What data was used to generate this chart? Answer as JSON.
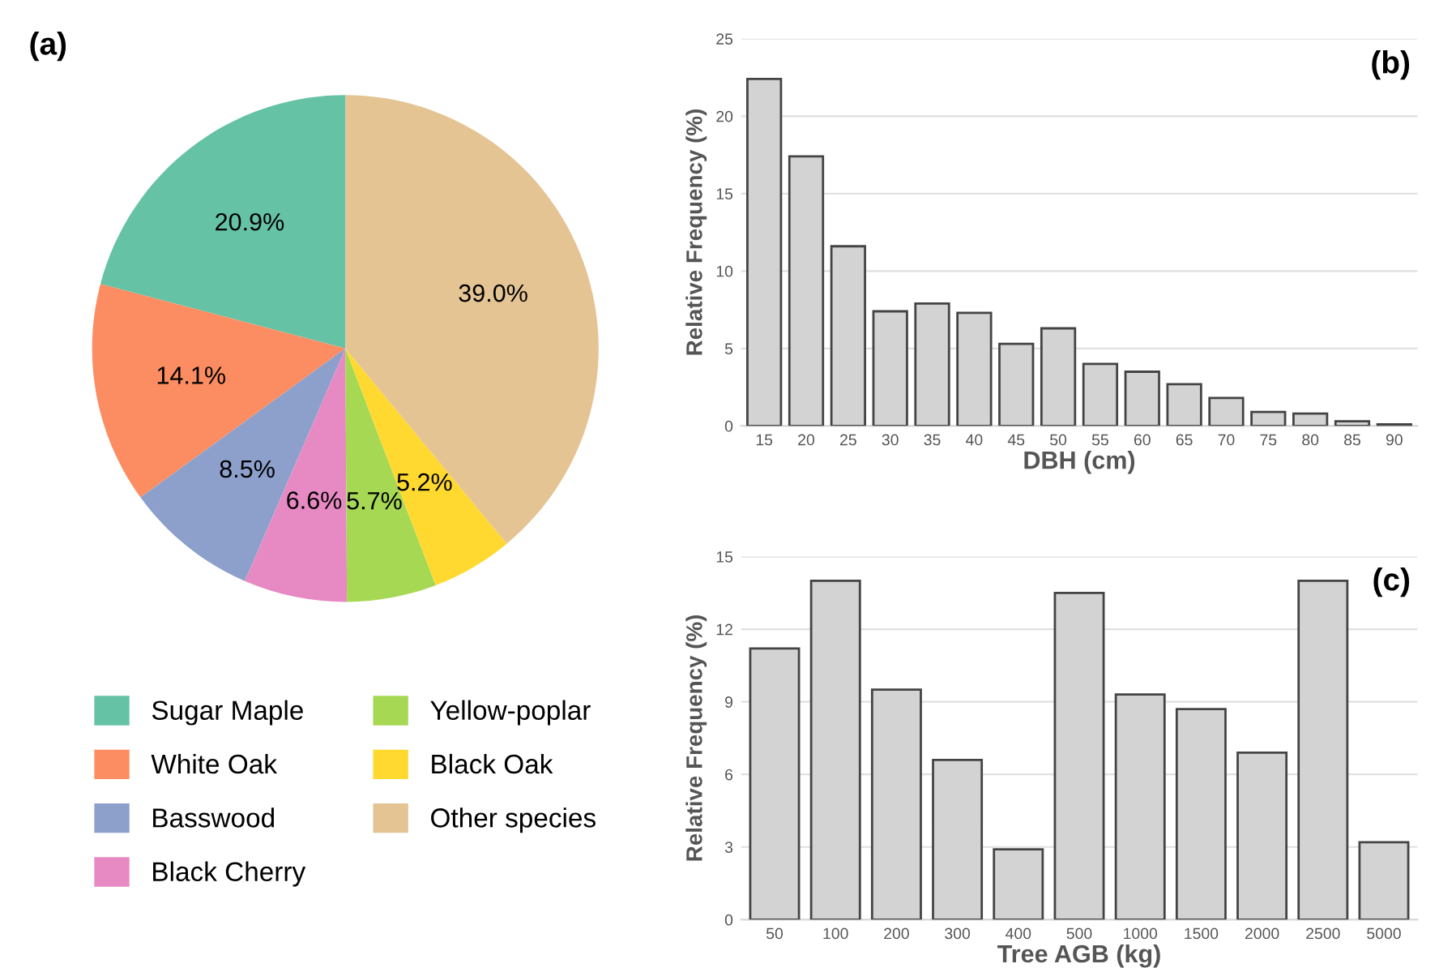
{
  "chart_data": [
    {
      "type": "pie",
      "annotations": [
        "(a)"
      ],
      "categories": [
        "Sugar Maple",
        "White Oak",
        "Basswood",
        "Black Cherry",
        "Yellow-poplar",
        "Black Oak",
        "Other species"
      ],
      "values": [
        20.9,
        14.1,
        8.5,
        6.6,
        5.7,
        5.2,
        39.0
      ],
      "colors": [
        "#66c2a5",
        "#fc8d62",
        "#8da0cb",
        "#e78ac3",
        "#a6d854",
        "#ffd92f",
        "#e5c494"
      ],
      "value_labels": [
        "20.9%",
        "14.1%",
        "8.5%",
        "6.6%",
        "5.7%",
        "5.2%",
        "39.0%"
      ],
      "legend": "bottom"
    },
    {
      "type": "bar",
      "annotations": [
        "(b)"
      ],
      "xlabel": "DBH (cm)",
      "ylabel": "Relative Frequency (%)",
      "categories": [
        "15",
        "20",
        "25",
        "30",
        "35",
        "40",
        "45",
        "50",
        "55",
        "60",
        "65",
        "70",
        "75",
        "80",
        "85",
        "90"
      ],
      "values": [
        22.4,
        17.4,
        11.6,
        7.4,
        7.9,
        7.3,
        5.3,
        6.3,
        4.0,
        3.5,
        2.7,
        1.8,
        0.9,
        0.8,
        0.3,
        0.1
      ],
      "color": "#d3d3d3",
      "ylim": [
        0,
        25
      ],
      "yticks": [
        0,
        5,
        10,
        15,
        20,
        25
      ],
      "grid": "y"
    },
    {
      "type": "bar",
      "annotations": [
        "(c)"
      ],
      "xlabel": "Tree AGB (kg)",
      "ylabel": "Relative Frequency (%)",
      "categories": [
        "50",
        "100",
        "200",
        "300",
        "400",
        "500",
        "1000",
        "1500",
        "2000",
        "2500",
        "5000"
      ],
      "values": [
        11.2,
        14.0,
        9.5,
        6.6,
        2.9,
        13.5,
        9.3,
        8.7,
        6.9,
        14.0,
        3.2
      ],
      "color": "#d3d3d3",
      "ylim": [
        0,
        15
      ],
      "yticks": [
        0,
        3,
        6,
        9,
        12,
        15
      ],
      "grid": "y"
    }
  ]
}
